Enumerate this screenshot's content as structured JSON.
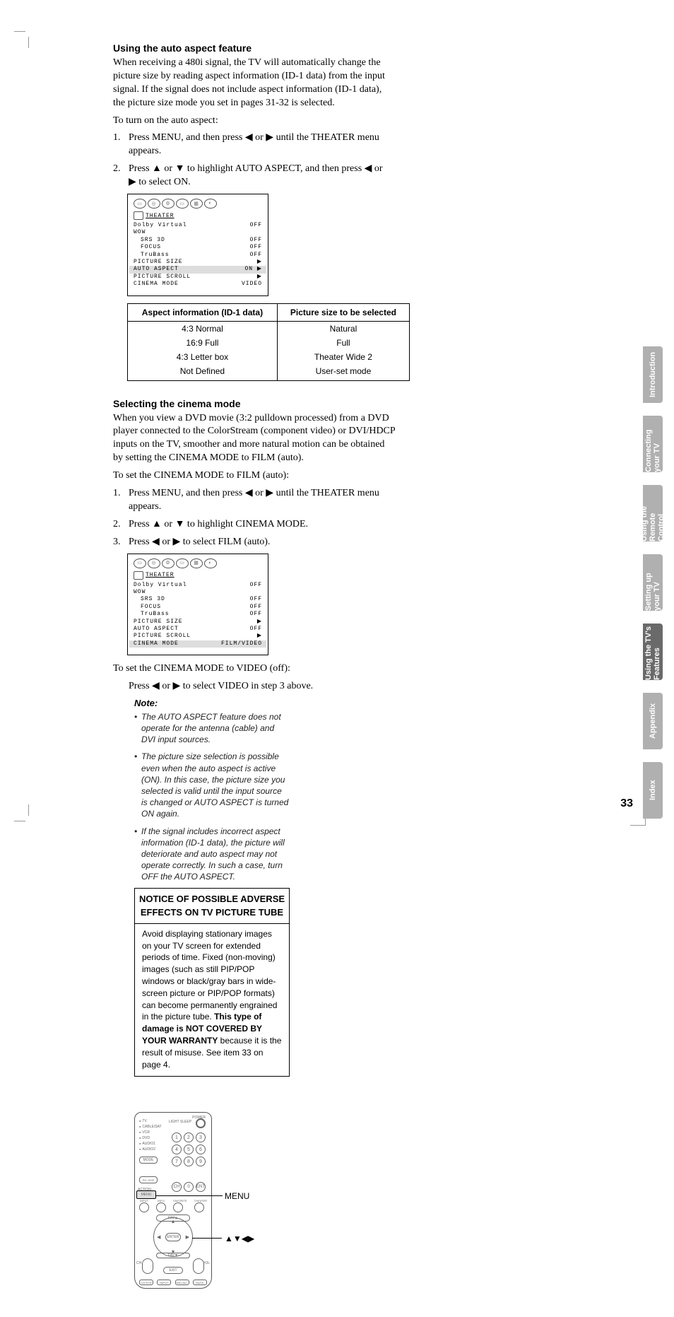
{
  "crop_color": "#999999",
  "section1": {
    "heading": "Using the auto aspect feature",
    "p1": "When receiving a 480i signal, the TV will automatically change the picture size by reading aspect information (ID-1 data) from the input signal. If the signal does not include aspect information (ID-1 data), the picture size mode you set in pages 31-32 is selected.",
    "p2": "To turn on the auto aspect:",
    "step1": "Press MENU, and then press ◀ or ▶ until the THEATER menu appears.",
    "step2a": "Press ▲ or ▼ to highlight AUTO ASPECT, and then press ◀ or",
    "step2b": "▶ to select ON."
  },
  "osd1": {
    "title": "THEATER",
    "rows": [
      {
        "l": "Dolby Virtual",
        "v": "OFF",
        "cls": ""
      },
      {
        "l": "WOW",
        "v": "",
        "cls": ""
      },
      {
        "l": "SRS 3D",
        "v": "OFF",
        "cls": "i1"
      },
      {
        "l": "FOCUS",
        "v": "OFF",
        "cls": "i1"
      },
      {
        "l": "TruBass",
        "v": "OFF",
        "cls": "i1"
      },
      {
        "l": "PICTURE SIZE",
        "v": "▶",
        "cls": ""
      },
      {
        "l": "AUTO ASPECT",
        "v": "ON ▶",
        "cls": "hl"
      },
      {
        "l": "PICTURE SCROLL",
        "v": "▶",
        "cls": ""
      },
      {
        "l": "CINEMA MODE",
        "v": "VIDEO",
        "cls": ""
      }
    ]
  },
  "table": {
    "h1": "Aspect information (ID-1 data)",
    "h2": "Picture size to be selected",
    "rows": [
      [
        "4:3 Normal",
        "Natural"
      ],
      [
        "16:9 Full",
        "Full"
      ],
      [
        "4:3 Letter box",
        "Theater Wide 2"
      ],
      [
        "Not Defined",
        "User-set mode"
      ]
    ]
  },
  "section2": {
    "heading": "Selecting the cinema mode",
    "p1": "When you view a DVD movie (3:2 pulldown processed) from a DVD player connected to the ColorStream (component video) or DVI/HDCP inputs on the TV, smoother and more natural motion can be obtained by setting the CINEMA MODE to FILM (auto).",
    "p2": "To set the CINEMA MODE to FILM (auto):",
    "step1": "Press MENU, and then press ◀ or ▶ until the THEATER menu appears.",
    "step2": "Press ▲ or ▼ to highlight CINEMA MODE.",
    "step3": "Press ◀ or ▶ to select FILM (auto).",
    "p3": "To set the CINEMA MODE to VIDEO (off):",
    "p4": "Press ◀ or ▶ to select VIDEO in step 3 above."
  },
  "osd2": {
    "title": "THEATER",
    "rows": [
      {
        "l": "Dolby Virtual",
        "v": "OFF",
        "cls": ""
      },
      {
        "l": "WOW",
        "v": "",
        "cls": ""
      },
      {
        "l": "SRS 3D",
        "v": "OFF",
        "cls": "i1"
      },
      {
        "l": "FOCUS",
        "v": "OFF",
        "cls": "i1"
      },
      {
        "l": "TruBass",
        "v": "OFF",
        "cls": "i1"
      },
      {
        "l": "PICTURE SIZE",
        "v": "▶",
        "cls": ""
      },
      {
        "l": "AUTO ASPECT",
        "v": "OFF",
        "cls": ""
      },
      {
        "l": "PICTURE SCROLL",
        "v": "▶",
        "cls": ""
      },
      {
        "l": "CINEMA MODE",
        "v": "FILM/VIDEO",
        "cls": "hl"
      }
    ]
  },
  "note": {
    "heading": "Note:",
    "items": [
      "The AUTO ASPECT feature does not operate for the antenna (cable) and DVI input sources.",
      "The picture size selection is possible even when the auto aspect is active (ON). In this case, the picture size you selected is valid until the input source is changed or AUTO ASPECT is turned ON again.",
      "If the signal includes incorrect aspect information (ID-1 data), the picture will deteriorate and auto aspect may not operate correctly. In such a case, turn OFF the AUTO ASPECT."
    ]
  },
  "notice": {
    "title": "NOTICE OF POSSIBLE ADVERSE EFFECTS ON TV PICTURE TUBE",
    "body_a": "Avoid displaying stationary images on your TV screen for extended periods of time. Fixed (non-moving) images (such as still PIP/POP windows or black/gray bars in wide-screen picture or PIP/POP formats) can become permanently engrained in the picture tube. ",
    "body_b": "This type of damage is NOT COVERED BY YOUR WARRANTY",
    "body_c": " because it is the result of misuse. See item 33 on page 4."
  },
  "remote": {
    "callout_menu": "MENU",
    "callout_arrows": "▲▼◀▶"
  },
  "tabs": [
    "Introduction",
    "Connecting your TV",
    "Using the Remote Control",
    "Setting up your TV",
    "Using the TV's Features",
    "Appendix",
    "Index"
  ],
  "active_tab": 4,
  "tab_inactive_color": "#b0b0b0",
  "tab_active_color": "#6a6a6a",
  "page_number": "33"
}
